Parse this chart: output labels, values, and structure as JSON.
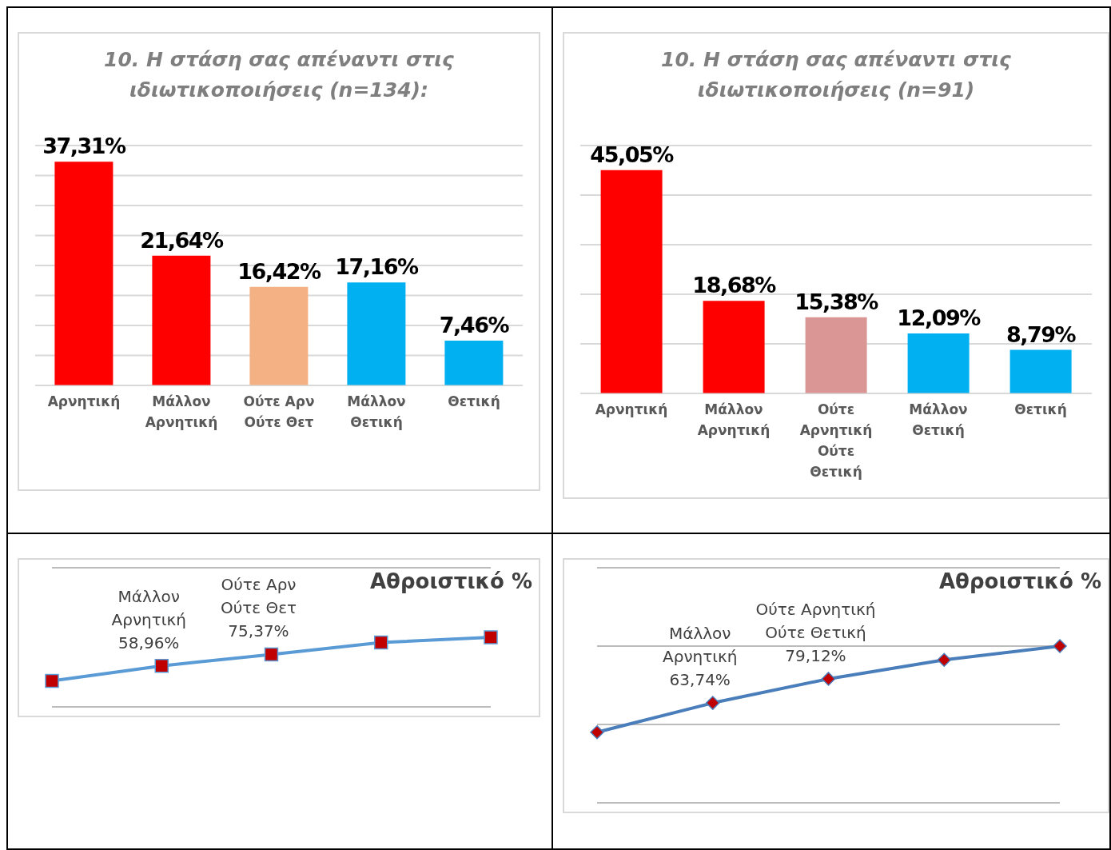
{
  "chart_data": [
    {
      "type": "bar",
      "title": "10. Η στάση σας απέναντι στις ιδιωτικοποιήσεις (n=134):",
      "categories": [
        "Αρνητική",
        "Μάλλον Αρνητική",
        "Ούτε Αρν Ούτε Θετ",
        "Μάλλον Θετική",
        "Θετική"
      ],
      "values": [
        37.31,
        21.64,
        16.42,
        17.16,
        7.46
      ],
      "colors": [
        "#ff0000",
        "#ff0000",
        "#f4b183",
        "#00b0f0",
        "#00b0f0"
      ],
      "value_labels": [
        "37,31%",
        "21,64%",
        "16,42%",
        "17,16%",
        "7,46%"
      ],
      "ylim": [
        0,
        40
      ],
      "yticks": [
        {
          "value": 0,
          "label": null
        },
        {
          "value": 5,
          "label": null
        },
        {
          "value": 10,
          "label": null
        },
        {
          "value": 15,
          "label": null
        },
        {
          "value": 20,
          "label": null
        },
        {
          "value": 25,
          "label": null
        },
        {
          "value": 30,
          "label": null
        },
        {
          "value": 35,
          "label": null
        },
        {
          "value": 40,
          "label": null
        }
      ],
      "grid": "y",
      "tick_labels": "x"
    },
    {
      "type": "bar",
      "title": "10. Η στάση σας απέναντι στις ιδιωτικοποιήσεις (n=91)",
      "categories": [
        "Αρνητική",
        "Μάλλον Αρνητική",
        "Ούτε Αρνητική Ούτε Θετική",
        "Μάλλον Θετική",
        "Θετική"
      ],
      "values": [
        45.05,
        18.68,
        15.38,
        12.09,
        8.79
      ],
      "colors": [
        "#ff0000",
        "#ff0000",
        "#d99694",
        "#00b0f0",
        "#00b0f0"
      ],
      "value_labels": [
        "45,05%",
        "18,68%",
        "15,38%",
        "12,09%",
        "8,79%"
      ],
      "ylim": [
        0,
        50
      ],
      "yticks": [
        {
          "value": 0,
          "label": null
        },
        {
          "value": 10,
          "label": null
        },
        {
          "value": 20,
          "label": null
        },
        {
          "value": 30,
          "label": null
        },
        {
          "value": 40,
          "label": null
        },
        {
          "value": 50,
          "label": null
        }
      ],
      "grid": "y",
      "tick_labels": "x"
    },
    {
      "type": "line",
      "title": "Αθροιστικό %",
      "categories": [
        null,
        null,
        null,
        null,
        null
      ],
      "values": [
        37.31,
        58.96,
        75.37,
        92.53,
        100
      ],
      "color": "#5b9bd5",
      "marker": "square",
      "value_labels": [
        null,
        "Μάλλον\nΑρνητική\n58,96%",
        "Ούτε Αρν\nΟύτε Θετ\n75,37%",
        null,
        null
      ],
      "ylim": [
        0,
        200
      ],
      "yticks": [
        {
          "value": 0,
          "label": null
        },
        {
          "value": 200,
          "label": null
        }
      ],
      "grid": "y",
      "tick_labels": false
    },
    {
      "type": "line",
      "title": "Αθροιστικό %",
      "categories": [
        null,
        null,
        null,
        null,
        null
      ],
      "values": [
        45.05,
        63.74,
        79.12,
        91.21,
        100
      ],
      "color": "#4a7ebb",
      "marker": "diamond",
      "value_labels": [
        null,
        "Μάλλον\nΑρνητική\n63,74%",
        "Ούτε Αρνητική\nΟύτε Θετική\n79,12%",
        null,
        null
      ],
      "ylim": [
        0,
        150
      ],
      "yticks": [
        {
          "value": 0,
          "label": null
        },
        {
          "value": 50,
          "label": null
        },
        {
          "value": 100,
          "label": null
        },
        {
          "value": 150,
          "label": null
        }
      ],
      "grid": "y",
      "tick_labels": false
    }
  ]
}
